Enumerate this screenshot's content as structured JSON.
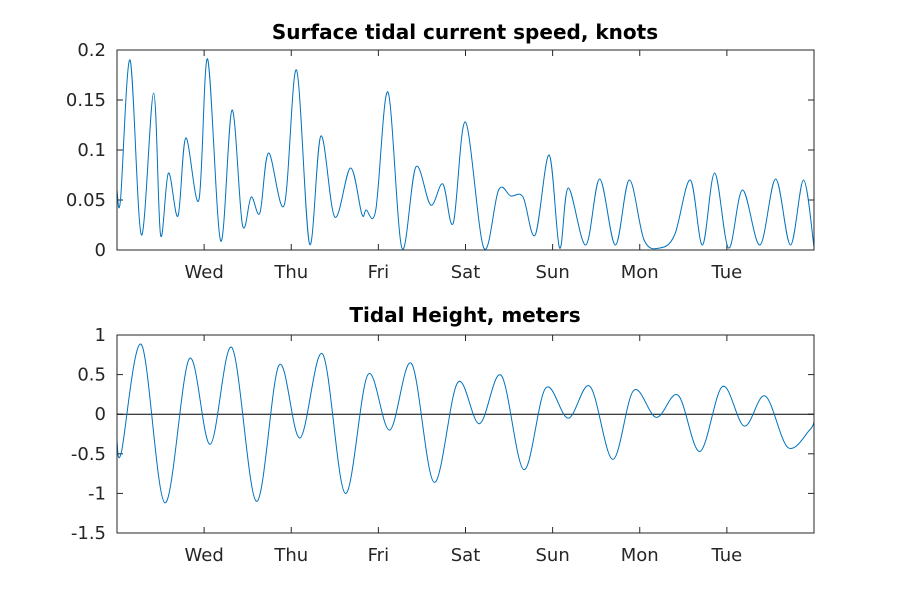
{
  "chart_data": [
    {
      "type": "line",
      "title": "Surface tidal current speed, knots",
      "xlabel": "",
      "ylabel": "",
      "x_unit": "days",
      "xlim": [
        0,
        8
      ],
      "ylim": [
        0,
        0.2
      ],
      "yticks": [
        0,
        0.05,
        0.1,
        0.15,
        0.2
      ],
      "ytick_labels": [
        "0",
        "0.05",
        "0.1",
        "0.15",
        "0.2"
      ],
      "xticks": [
        1,
        2,
        3,
        4,
        5,
        6,
        7
      ],
      "xtick_labels": [
        "Wed",
        "Thu",
        "Fri",
        "Sat",
        "Sun",
        "Mon",
        "Tue"
      ],
      "grid": false,
      "color": "#0072BD",
      "series": [
        {
          "x": [
            0,
            0.04,
            0.15,
            0.28,
            0.42,
            0.5,
            0.59,
            0.7,
            0.79,
            0.94,
            1.04,
            1.19,
            1.32,
            1.44,
            1.54,
            1.64,
            1.74,
            1.92,
            2.06,
            2.21,
            2.34,
            2.5,
            2.68,
            2.81,
            2.86,
            2.97,
            3.11,
            3.27,
            3.43,
            3.6,
            3.74,
            3.86,
            4.0,
            4.21,
            4.38,
            4.52,
            4.66,
            4.8,
            4.96,
            5.08,
            5.18,
            5.38,
            5.54,
            5.72,
            5.88,
            6.05,
            6.23,
            6.4,
            6.58,
            6.72,
            6.86,
            7.02,
            7.18,
            7.38,
            7.56,
            7.73,
            7.88,
            8.0
          ],
          "y": [
            0.06,
            0.05,
            0.19,
            0.015,
            0.157,
            0.015,
            0.077,
            0.034,
            0.112,
            0.05,
            0.191,
            0.009,
            0.14,
            0.025,
            0.053,
            0.037,
            0.097,
            0.045,
            0.18,
            0.006,
            0.114,
            0.033,
            0.082,
            0.036,
            0.04,
            0.04,
            0.158,
            0.002,
            0.083,
            0.045,
            0.066,
            0.027,
            0.128,
            0.002,
            0.06,
            0.054,
            0.053,
            0.015,
            0.095,
            0.002,
            0.062,
            0.005,
            0.071,
            0.005,
            0.07,
            0.01,
            0.002,
            0.015,
            0.07,
            0.005,
            0.077,
            0.002,
            0.06,
            0.005,
            0.071,
            0.005,
            0.07,
            0.003
          ]
        }
      ]
    },
    {
      "type": "line",
      "title": "Tidal Height, meters",
      "xlabel": "",
      "ylabel": "",
      "x_unit": "days",
      "xlim": [
        0,
        8
      ],
      "ylim": [
        -1.5,
        1
      ],
      "yticks": [
        -1.5,
        -1,
        -0.5,
        0,
        0.5,
        1
      ],
      "ytick_labels": [
        "-1.5",
        "-1",
        "-0.5",
        "0",
        "0.5",
        "1"
      ],
      "xticks": [
        1,
        2,
        3,
        4,
        5,
        6,
        7
      ],
      "xtick_labels": [
        "Wed",
        "Thu",
        "Fri",
        "Sat",
        "Sun",
        "Mon",
        "Tue"
      ],
      "grid": false,
      "zero_line": true,
      "color": "#0072BD",
      "series": [
        {
          "x": [
            0,
            0.05,
            0.28,
            0.55,
            0.83,
            1.07,
            1.32,
            1.6,
            1.86,
            2.1,
            2.36,
            2.62,
            2.88,
            3.13,
            3.38,
            3.64,
            3.91,
            4.16,
            4.41,
            4.67,
            4.92,
            5.18,
            5.43,
            5.69,
            5.93,
            6.19,
            6.44,
            6.69,
            6.95,
            7.2,
            7.44,
            7.7,
            7.95,
            8.0
          ],
          "y": [
            -0.35,
            -0.48,
            0.88,
            -1.12,
            0.7,
            -0.38,
            0.84,
            -1.1,
            0.62,
            -0.3,
            0.76,
            -1.0,
            0.5,
            -0.2,
            0.64,
            -0.86,
            0.4,
            -0.12,
            0.49,
            -0.7,
            0.33,
            -0.05,
            0.35,
            -0.57,
            0.3,
            -0.04,
            0.24,
            -0.47,
            0.35,
            -0.15,
            0.23,
            -0.42,
            -0.2,
            -0.1
          ]
        }
      ]
    }
  ]
}
